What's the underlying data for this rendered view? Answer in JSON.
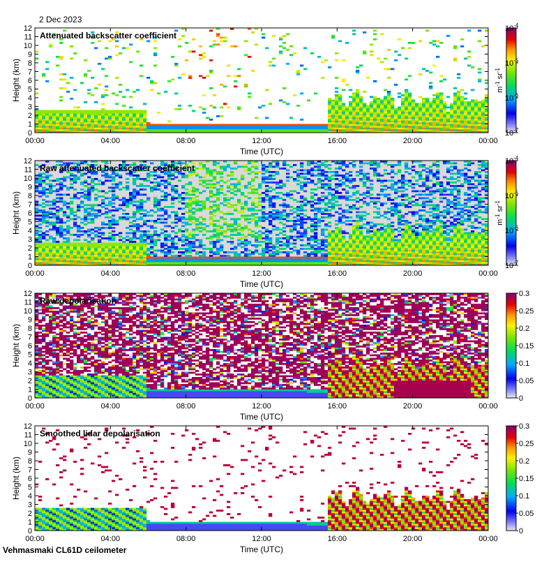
{
  "date": "2 Dec 2023",
  "footer": "Vehmasmaki CL61D ceilometer",
  "chart_data": [
    {
      "type": "heatmap",
      "title": "Attenuated backscatter coefficient",
      "xlabel": "Time (UTC)",
      "ylabel": "Height (km)",
      "x_ticks": [
        "00:00",
        "04:00",
        "08:00",
        "12:00",
        "16:00",
        "20:00",
        "00:00"
      ],
      "xlim": [
        0,
        24
      ],
      "ylim": [
        0,
        12
      ],
      "y_ticks": [
        "0",
        "1",
        "2",
        "3",
        "4",
        "5",
        "6",
        "7",
        "8",
        "9",
        "10",
        "11",
        "12"
      ],
      "colorbar": {
        "scale": "log",
        "range": [
          1e-07,
          0.0001
        ],
        "labels": [
          {
            "base": "10",
            "exp": "-4"
          },
          {
            "base": "10",
            "exp": "-5"
          },
          {
            "base": "10",
            "exp": "-6"
          },
          {
            "base": "10",
            "exp": "-7"
          }
        ],
        "unit_parts": [
          {
            "base": "m",
            "exp": "-1"
          },
          {
            "base": "sr",
            "exp": "-1"
          }
        ]
      },
      "background": "white",
      "noise_density": 0.06
    },
    {
      "type": "heatmap",
      "title": "Raw attenuated backscatter coefficient",
      "xlabel": "Time (UTC)",
      "ylabel": "Height (km)",
      "x_ticks": [
        "00:00",
        "04:00",
        "08:00",
        "12:00",
        "16:00",
        "20:00",
        "00:00"
      ],
      "xlim": [
        0,
        24
      ],
      "ylim": [
        0,
        12
      ],
      "y_ticks": [
        "0",
        "1",
        "2",
        "3",
        "4",
        "5",
        "6",
        "7",
        "8",
        "9",
        "10",
        "11",
        "12"
      ],
      "colorbar": {
        "scale": "log",
        "range": [
          1e-07,
          0.0001
        ],
        "labels": [
          {
            "base": "10",
            "exp": "-4"
          },
          {
            "base": "10",
            "exp": "-5"
          },
          {
            "base": "10",
            "exp": "-6"
          },
          {
            "base": "10",
            "exp": "-7"
          }
        ],
        "unit_parts": [
          {
            "base": "m",
            "exp": "-1"
          },
          {
            "base": "sr",
            "exp": "-1"
          }
        ]
      },
      "background": "lightgrey",
      "noise_density": 0.55
    },
    {
      "type": "heatmap",
      "title": "Raw depolarisation",
      "xlabel": "Time (UTC)",
      "ylabel": "Height (km)",
      "x_ticks": [
        "00:00",
        "04:00",
        "08:00",
        "12:00",
        "16:00",
        "20:00",
        "00:00"
      ],
      "xlim": [
        0,
        24
      ],
      "ylim": [
        0,
        12
      ],
      "y_ticks": [
        "0",
        "1",
        "2",
        "3",
        "4",
        "5",
        "6",
        "7",
        "8",
        "9",
        "10",
        "11",
        "12"
      ],
      "colorbar": {
        "scale": "linear",
        "range": [
          0,
          0.3
        ],
        "labels": [
          "0.3",
          "0.25",
          "0.2",
          "0.15",
          "0.1",
          "0.05",
          "0"
        ]
      },
      "background": "purple-noise",
      "noise_density": 0.7
    },
    {
      "type": "heatmap",
      "title": "Smoothed lidar depolarisation",
      "xlabel": "Time (UTC)",
      "ylabel": "Height (km)",
      "x_ticks": [
        "00:00",
        "04:00",
        "08:00",
        "12:00",
        "16:00",
        "20:00",
        "00:00"
      ],
      "xlim": [
        0,
        24
      ],
      "ylim": [
        0,
        12
      ],
      "y_ticks": [
        "0",
        "1",
        "2",
        "3",
        "4",
        "5",
        "6",
        "7",
        "8",
        "9",
        "10",
        "11",
        "12"
      ],
      "colorbar": {
        "scale": "linear",
        "range": [
          0,
          0.3
        ],
        "labels": [
          "0.3",
          "0.25",
          "0.2",
          "0.15",
          "0.1",
          "0.05",
          "0"
        ]
      },
      "background": "white",
      "noise_density": 0.05
    }
  ]
}
